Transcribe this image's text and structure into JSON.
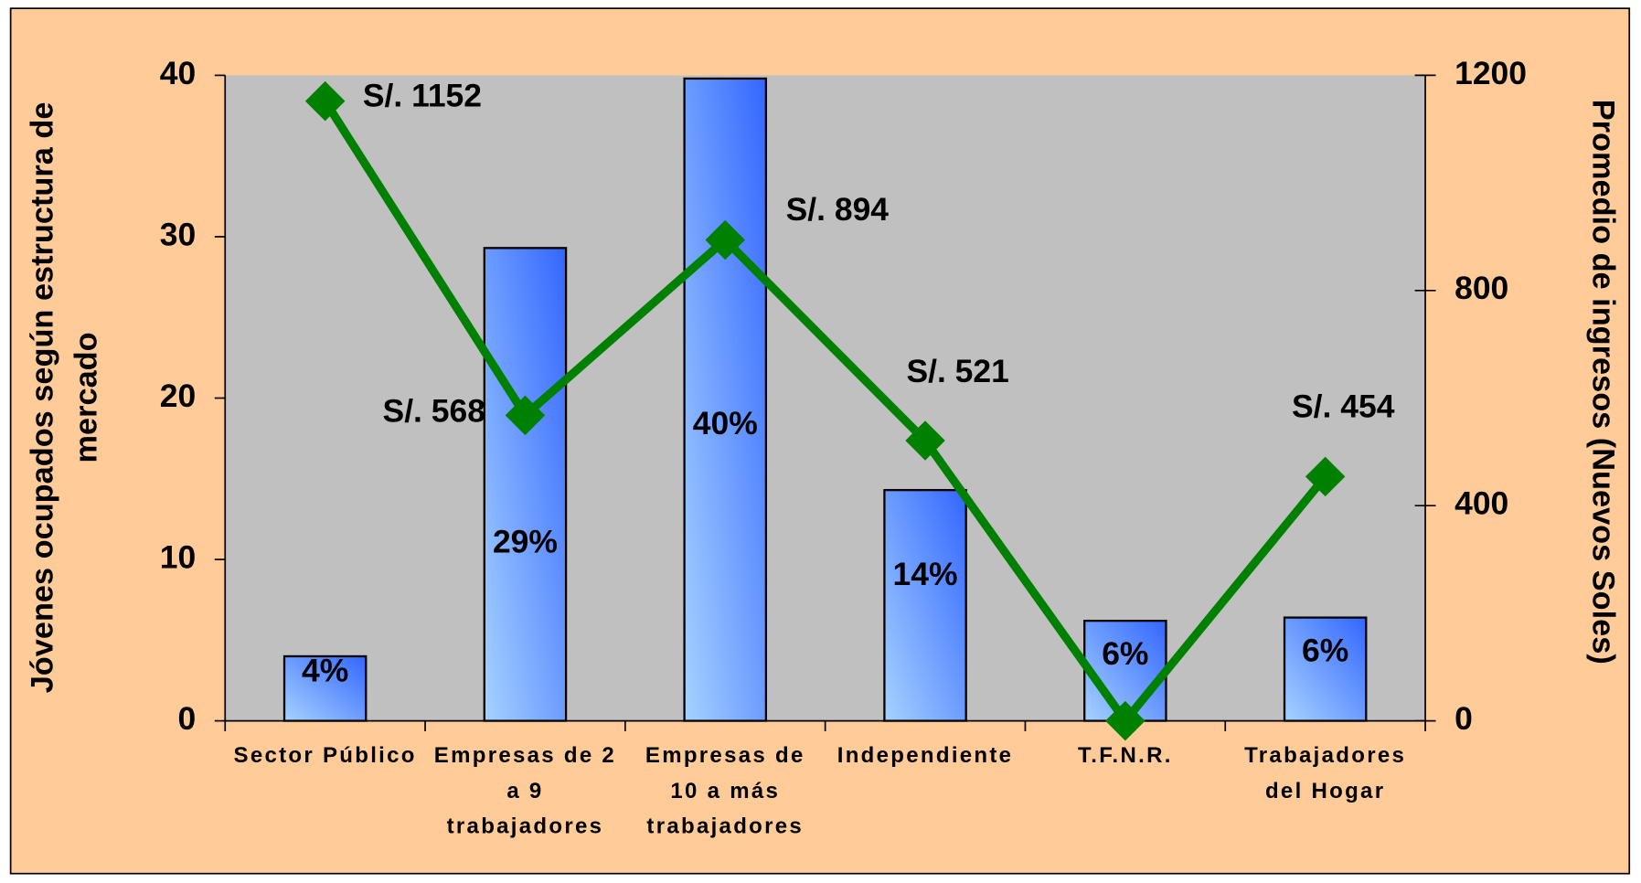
{
  "chart_data": {
    "type": "bar",
    "categories": [
      [
        "Sector Público"
      ],
      [
        "Empresas de 2",
        "a 9",
        "trabajadores"
      ],
      [
        "Empresas de",
        "10 a más",
        "trabajadores"
      ],
      [
        "Independiente"
      ],
      [
        "T.F.N.R."
      ],
      [
        "Trabajadores",
        "del Hogar"
      ]
    ],
    "ylabel": [
      "Jóvenes ocupados según estructura de",
      "mercado"
    ],
    "y2label": "Promedio de ingresos (Nuevos Soles)",
    "ylim": [
      0,
      40
    ],
    "yticks": [
      0,
      10,
      20,
      30,
      40
    ],
    "y2lim": [
      0,
      1200
    ],
    "y2ticks": [
      0,
      400,
      800,
      1200
    ],
    "series": [
      {
        "type": "bar",
        "color": "#3366ff",
        "values": [
          4,
          29.3,
          39.8,
          14.3,
          6.2,
          6.4
        ],
        "value_labels": [
          "4%",
          "29%",
          "40%",
          "14%",
          "6%",
          "6%"
        ]
      },
      {
        "type": "line",
        "axis": "y2",
        "color": "#008000",
        "values": [
          1152,
          568,
          894,
          521,
          0,
          454
        ],
        "value_labels": [
          "S/. 1152",
          "S/. 568",
          "S/. 894",
          "S/. 521",
          null,
          "S/. 454"
        ]
      }
    ]
  }
}
